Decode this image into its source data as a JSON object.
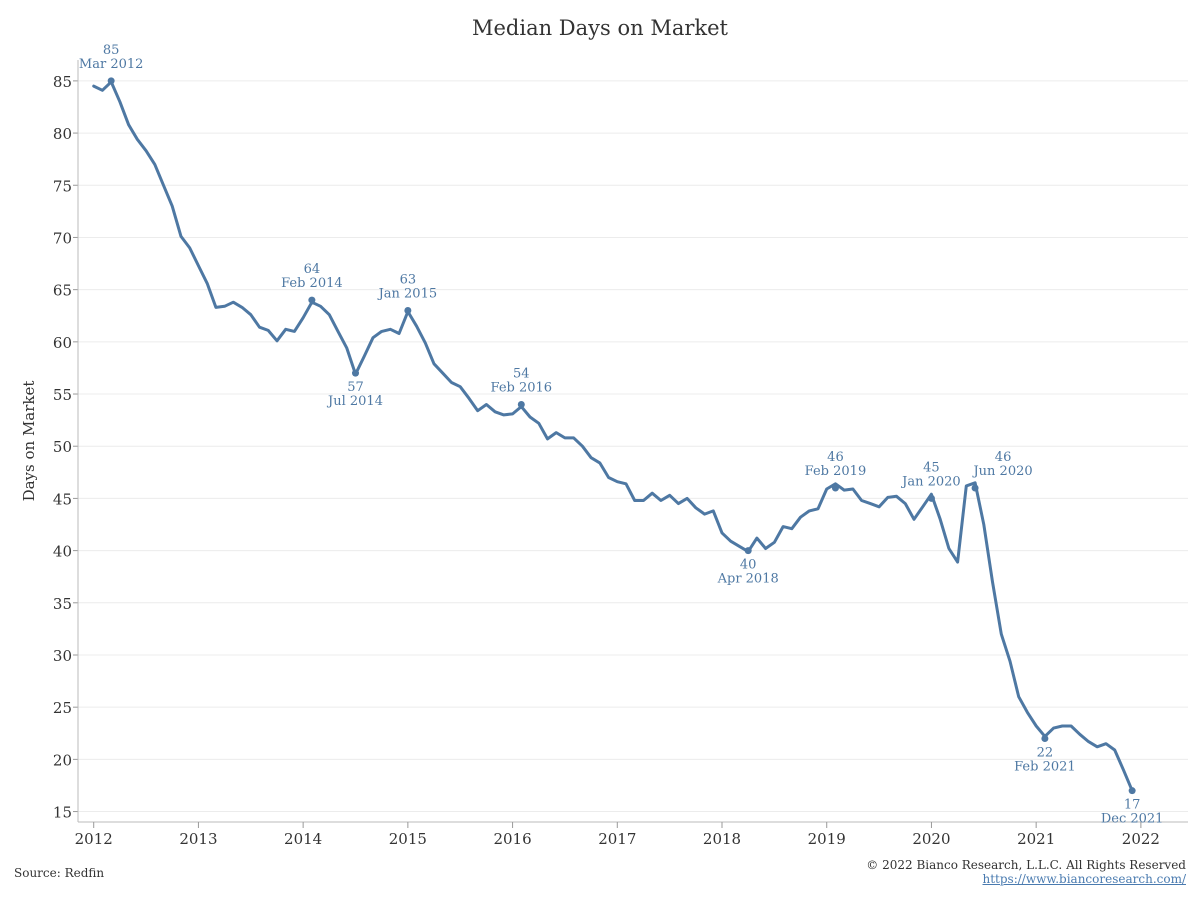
{
  "chart_data": {
    "type": "line",
    "title": "Median Days on Market",
    "ylabel": "Days on Market",
    "xlabel": "",
    "ylim": [
      14,
      87
    ],
    "xlim": [
      2011.85,
      2022.45
    ],
    "y_ticks": [
      15,
      20,
      25,
      30,
      35,
      40,
      45,
      50,
      55,
      60,
      65,
      70,
      75,
      80,
      85
    ],
    "x_ticks": [
      2012,
      2013,
      2014,
      2015,
      2016,
      2017,
      2018,
      2019,
      2020,
      2021,
      2022
    ],
    "grid": true,
    "line_color": "#4e78a3",
    "series": [
      {
        "x": [
          "2012-01",
          "2012-02",
          "2012-03",
          "2012-04",
          "2012-05",
          "2012-06",
          "2012-07",
          "2012-08",
          "2012-09",
          "2012-10",
          "2012-11",
          "2012-12",
          "2013-01",
          "2013-02",
          "2013-03",
          "2013-04",
          "2013-05",
          "2013-06",
          "2013-07",
          "2013-08",
          "2013-09",
          "2013-10",
          "2013-11",
          "2013-12",
          "2014-01",
          "2014-02",
          "2014-03",
          "2014-04",
          "2014-05",
          "2014-06",
          "2014-07",
          "2014-08",
          "2014-09",
          "2014-10",
          "2014-11",
          "2014-12",
          "2015-01",
          "2015-02",
          "2015-03",
          "2015-04",
          "2015-05",
          "2015-06",
          "2015-07",
          "2015-08",
          "2015-09",
          "2015-10",
          "2015-11",
          "2015-12",
          "2016-01",
          "2016-02",
          "2016-03",
          "2016-04",
          "2016-05",
          "2016-06",
          "2016-07",
          "2016-08",
          "2016-09",
          "2016-10",
          "2016-11",
          "2016-12",
          "2017-01",
          "2017-02",
          "2017-03",
          "2017-04",
          "2017-05",
          "2017-06",
          "2017-07",
          "2017-08",
          "2017-09",
          "2017-10",
          "2017-11",
          "2017-12",
          "2018-01",
          "2018-02",
          "2018-03",
          "2018-04",
          "2018-05",
          "2018-06",
          "2018-07",
          "2018-08",
          "2018-09",
          "2018-10",
          "2018-11",
          "2018-12",
          "2019-01",
          "2019-02",
          "2019-03",
          "2019-04",
          "2019-05",
          "2019-06",
          "2019-07",
          "2019-08",
          "2019-09",
          "2019-10",
          "2019-11",
          "2019-12",
          "2020-01",
          "2020-02",
          "2020-03",
          "2020-04",
          "2020-05",
          "2020-06",
          "2020-07",
          "2020-08",
          "2020-09",
          "2020-10",
          "2020-11",
          "2020-12",
          "2021-01",
          "2021-02",
          "2021-03",
          "2021-04",
          "2021-05",
          "2021-06",
          "2021-07",
          "2021-08",
          "2021-09",
          "2021-10",
          "2021-11",
          "2021-12"
        ],
        "values": [
          84.5,
          84.1,
          84.9,
          83.0,
          80.8,
          79.4,
          78.3,
          77.0,
          75.0,
          73.0,
          70.1,
          69.0,
          67.3,
          65.6,
          63.3,
          63.4,
          63.8,
          63.3,
          62.6,
          61.4,
          61.1,
          60.1,
          61.2,
          61.0,
          62.3,
          63.8,
          63.4,
          62.6,
          61.0,
          59.4,
          56.9,
          58.6,
          60.4,
          61.0,
          61.2,
          60.8,
          62.9,
          61.5,
          59.9,
          57.9,
          57.0,
          56.1,
          55.7,
          54.6,
          53.4,
          54.0,
          53.3,
          53.0,
          53.1,
          53.8,
          52.8,
          52.2,
          50.7,
          51.3,
          50.8,
          50.8,
          50.0,
          48.9,
          48.4,
          47.0,
          46.6,
          46.4,
          44.8,
          44.8,
          45.5,
          44.8,
          45.3,
          44.5,
          45.0,
          44.1,
          43.5,
          43.8,
          41.7,
          40.9,
          40.4,
          39.9,
          41.2,
          40.2,
          40.8,
          42.3,
          42.1,
          43.2,
          43.8,
          44.0,
          45.9,
          46.4,
          45.8,
          45.9,
          44.8,
          44.5,
          44.2,
          45.1,
          45.2,
          44.5,
          43.0,
          44.2,
          45.4,
          43.0,
          40.2,
          38.9,
          46.2,
          46.5,
          42.5,
          37.0,
          32.0,
          29.4,
          26.0,
          24.5,
          23.2,
          22.2,
          23.0,
          23.2,
          23.2,
          22.4,
          21.7,
          21.2,
          21.5,
          20.9,
          19.0,
          17.0
        ]
      }
    ],
    "annotations": [
      {
        "x": "2012-03",
        "y": 85,
        "value": "85",
        "label": "Mar 2012",
        "pos": "above"
      },
      {
        "x": "2014-02",
        "y": 64,
        "value": "64",
        "label": "Feb 2014",
        "pos": "above"
      },
      {
        "x": "2014-07",
        "y": 57,
        "value": "57",
        "label": "Jul 2014",
        "pos": "below"
      },
      {
        "x": "2015-01",
        "y": 63,
        "value": "63",
        "label": "Jan 2015",
        "pos": "above"
      },
      {
        "x": "2016-02",
        "y": 54,
        "value": "54",
        "label": "Feb 2016",
        "pos": "above"
      },
      {
        "x": "2018-04",
        "y": 40,
        "value": "40",
        "label": "Apr 2018",
        "pos": "below"
      },
      {
        "x": "2019-02",
        "y": 46,
        "value": "46",
        "label": "Feb 2019",
        "pos": "above"
      },
      {
        "x": "2020-01",
        "y": 45,
        "value": "45",
        "label": "Jan 2020",
        "pos": "above"
      },
      {
        "x": "2020-06",
        "y": 46,
        "value": "46",
        "label": "Jun 2020",
        "pos": "above-right"
      },
      {
        "x": "2021-02",
        "y": 22,
        "value": "22",
        "label": "Feb 2021",
        "pos": "below"
      },
      {
        "x": "2021-12",
        "y": 17,
        "value": "17",
        "label": "Dec 2021",
        "pos": "below"
      }
    ]
  },
  "footer": {
    "source": "Source: Redfin",
    "copyright": "© 2022 Bianco Research, L.L.C. All Rights Reserved",
    "link": "https://www.biancoresearch.com/"
  }
}
